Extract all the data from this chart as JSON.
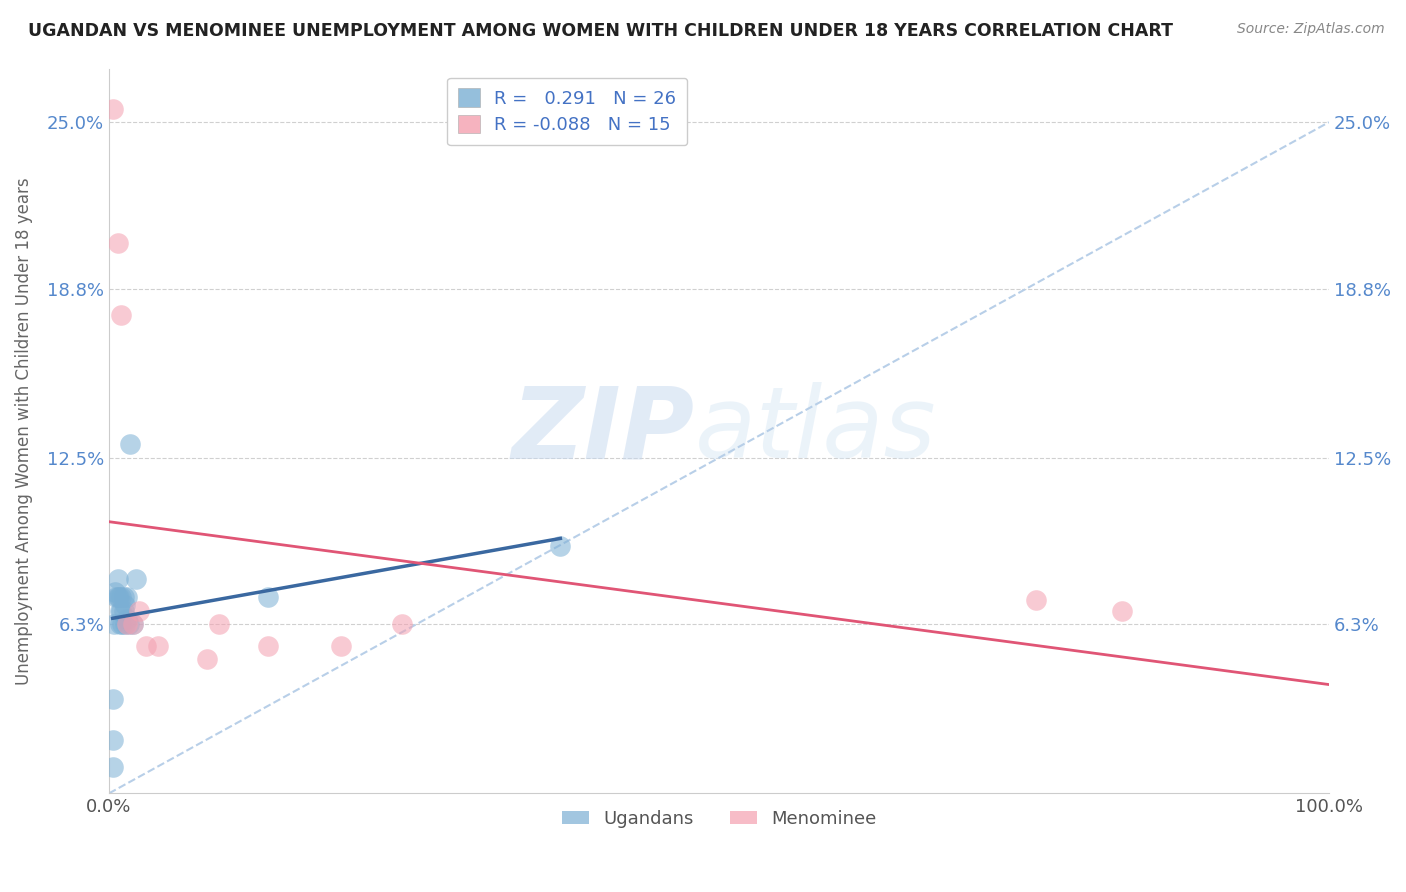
{
  "title": "UGANDAN VS MENOMINEE UNEMPLOYMENT AMONG WOMEN WITH CHILDREN UNDER 18 YEARS CORRELATION CHART",
  "source": "Source: ZipAtlas.com",
  "ylabel": "Unemployment Among Women with Children Under 18 years",
  "xlim": [
    0.0,
    1.0
  ],
  "ylim": [
    0.0,
    0.27
  ],
  "yticks": [
    0.063,
    0.125,
    0.188,
    0.25
  ],
  "ytick_labels": [
    "6.3%",
    "12.5%",
    "18.8%",
    "25.0%"
  ],
  "xticks": [
    0.0,
    0.2,
    0.4,
    0.6,
    0.8,
    1.0
  ],
  "xtick_labels": [
    "0.0%",
    "",
    "",
    "",
    "",
    "100.0%"
  ],
  "ugandan_R": 0.291,
  "ugandan_N": 26,
  "menominee_R": -0.088,
  "menominee_N": 15,
  "ugandan_color": "#7bafd4",
  "menominee_color": "#f4a0b0",
  "ugandan_line_color": "#3a68a0",
  "menominee_line_color": "#e05575",
  "diagonal_color": "#b8cfe8",
  "ugandan_points_x": [
    0.003,
    0.003,
    0.003,
    0.004,
    0.005,
    0.006,
    0.007,
    0.007,
    0.008,
    0.009,
    0.009,
    0.01,
    0.01,
    0.011,
    0.012,
    0.012,
    0.013,
    0.013,
    0.015,
    0.015,
    0.016,
    0.017,
    0.02,
    0.022,
    0.13,
    0.37
  ],
  "ugandan_points_y": [
    0.01,
    0.02,
    0.035,
    0.063,
    0.075,
    0.073,
    0.073,
    0.08,
    0.073,
    0.063,
    0.068,
    0.068,
    0.073,
    0.063,
    0.068,
    0.073,
    0.063,
    0.07,
    0.065,
    0.073,
    0.063,
    0.13,
    0.063,
    0.08,
    0.073,
    0.092
  ],
  "menominee_points_x": [
    0.003,
    0.007,
    0.01,
    0.015,
    0.02,
    0.025,
    0.03,
    0.04,
    0.08,
    0.09,
    0.13,
    0.19,
    0.24,
    0.76,
    0.83
  ],
  "menominee_points_y": [
    0.255,
    0.205,
    0.178,
    0.063,
    0.063,
    0.068,
    0.055,
    0.055,
    0.05,
    0.063,
    0.055,
    0.055,
    0.063,
    0.072,
    0.068
  ],
  "watermark_zip": "ZIP",
  "watermark_atlas": "atlas",
  "background_color": "#ffffff",
  "grid_color": "#d0d0d0"
}
